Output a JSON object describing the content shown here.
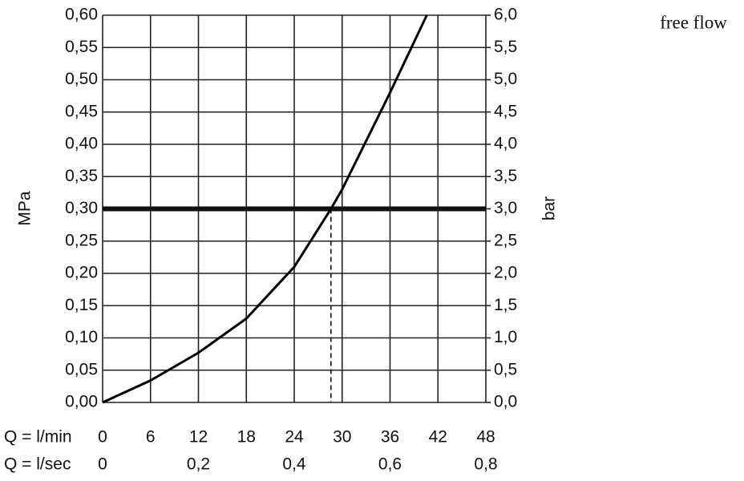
{
  "chart_data": {
    "type": "line",
    "title": "free flow",
    "x_label": "Q = l/min",
    "x2_label": "Q = l/sec",
    "y_label": "MPa",
    "y2_label": "bar",
    "x": [
      0,
      6,
      12,
      18,
      24,
      28.6,
      30,
      36,
      40.6
    ],
    "values": [
      0,
      0.034,
      0.077,
      0.13,
      0.21,
      0.3,
      0.33,
      0.48,
      0.6
    ],
    "color": "#000000",
    "reference_line": {
      "y": 0.3,
      "x": 28.6
    },
    "xlim": [
      0,
      48
    ],
    "xticks": [
      0,
      6,
      12,
      18,
      24,
      30,
      36,
      42,
      48
    ],
    "x2lim": [
      0,
      0.8
    ],
    "x2ticks": [
      0,
      {
        "value": 0.2,
        "label": "0,2"
      },
      {
        "value": 0.4,
        "label": "0,4"
      },
      {
        "value": 0.6,
        "label": "0,6"
      },
      {
        "value": 0.8,
        "label": "0,8"
      }
    ],
    "ylim": [
      0,
      0.6
    ],
    "yticks": [
      {
        "value": 0,
        "label": "0,00"
      },
      {
        "value": 0.05,
        "label": "0,05"
      },
      {
        "value": 0.1,
        "label": "0,10"
      },
      {
        "value": 0.15,
        "label": "0,15"
      },
      {
        "value": 0.2,
        "label": "0,20"
      },
      {
        "value": 0.25,
        "label": "0,25"
      },
      {
        "value": 0.3,
        "label": "0,30"
      },
      {
        "value": 0.35,
        "label": "0,35"
      },
      {
        "value": 0.4,
        "label": "0,40"
      },
      {
        "value": 0.45,
        "label": "0,45"
      },
      {
        "value": 0.5,
        "label": "0,50"
      },
      {
        "value": 0.55,
        "label": "0,55"
      },
      {
        "value": 0.6,
        "label": "0,60"
      }
    ],
    "y2lim": [
      0,
      6
    ],
    "y2ticks": [
      {
        "value": 0,
        "label": "0,0"
      },
      {
        "value": 0.5,
        "label": "0,5"
      },
      {
        "value": 1,
        "label": "1,0"
      },
      {
        "value": 1.5,
        "label": "1,5"
      },
      {
        "value": 2,
        "label": "2,0"
      },
      {
        "value": 2.5,
        "label": "2,5"
      },
      {
        "value": 3,
        "label": "3,0"
      },
      {
        "value": 3.5,
        "label": "3,5"
      },
      {
        "value": 4,
        "label": "4,0"
      },
      {
        "value": 4.5,
        "label": "4,5"
      },
      {
        "value": 5,
        "label": "5,0"
      },
      {
        "value": 5.5,
        "label": "5,5"
      },
      {
        "value": 6,
        "label": "6,0"
      }
    ],
    "grid": true
  }
}
